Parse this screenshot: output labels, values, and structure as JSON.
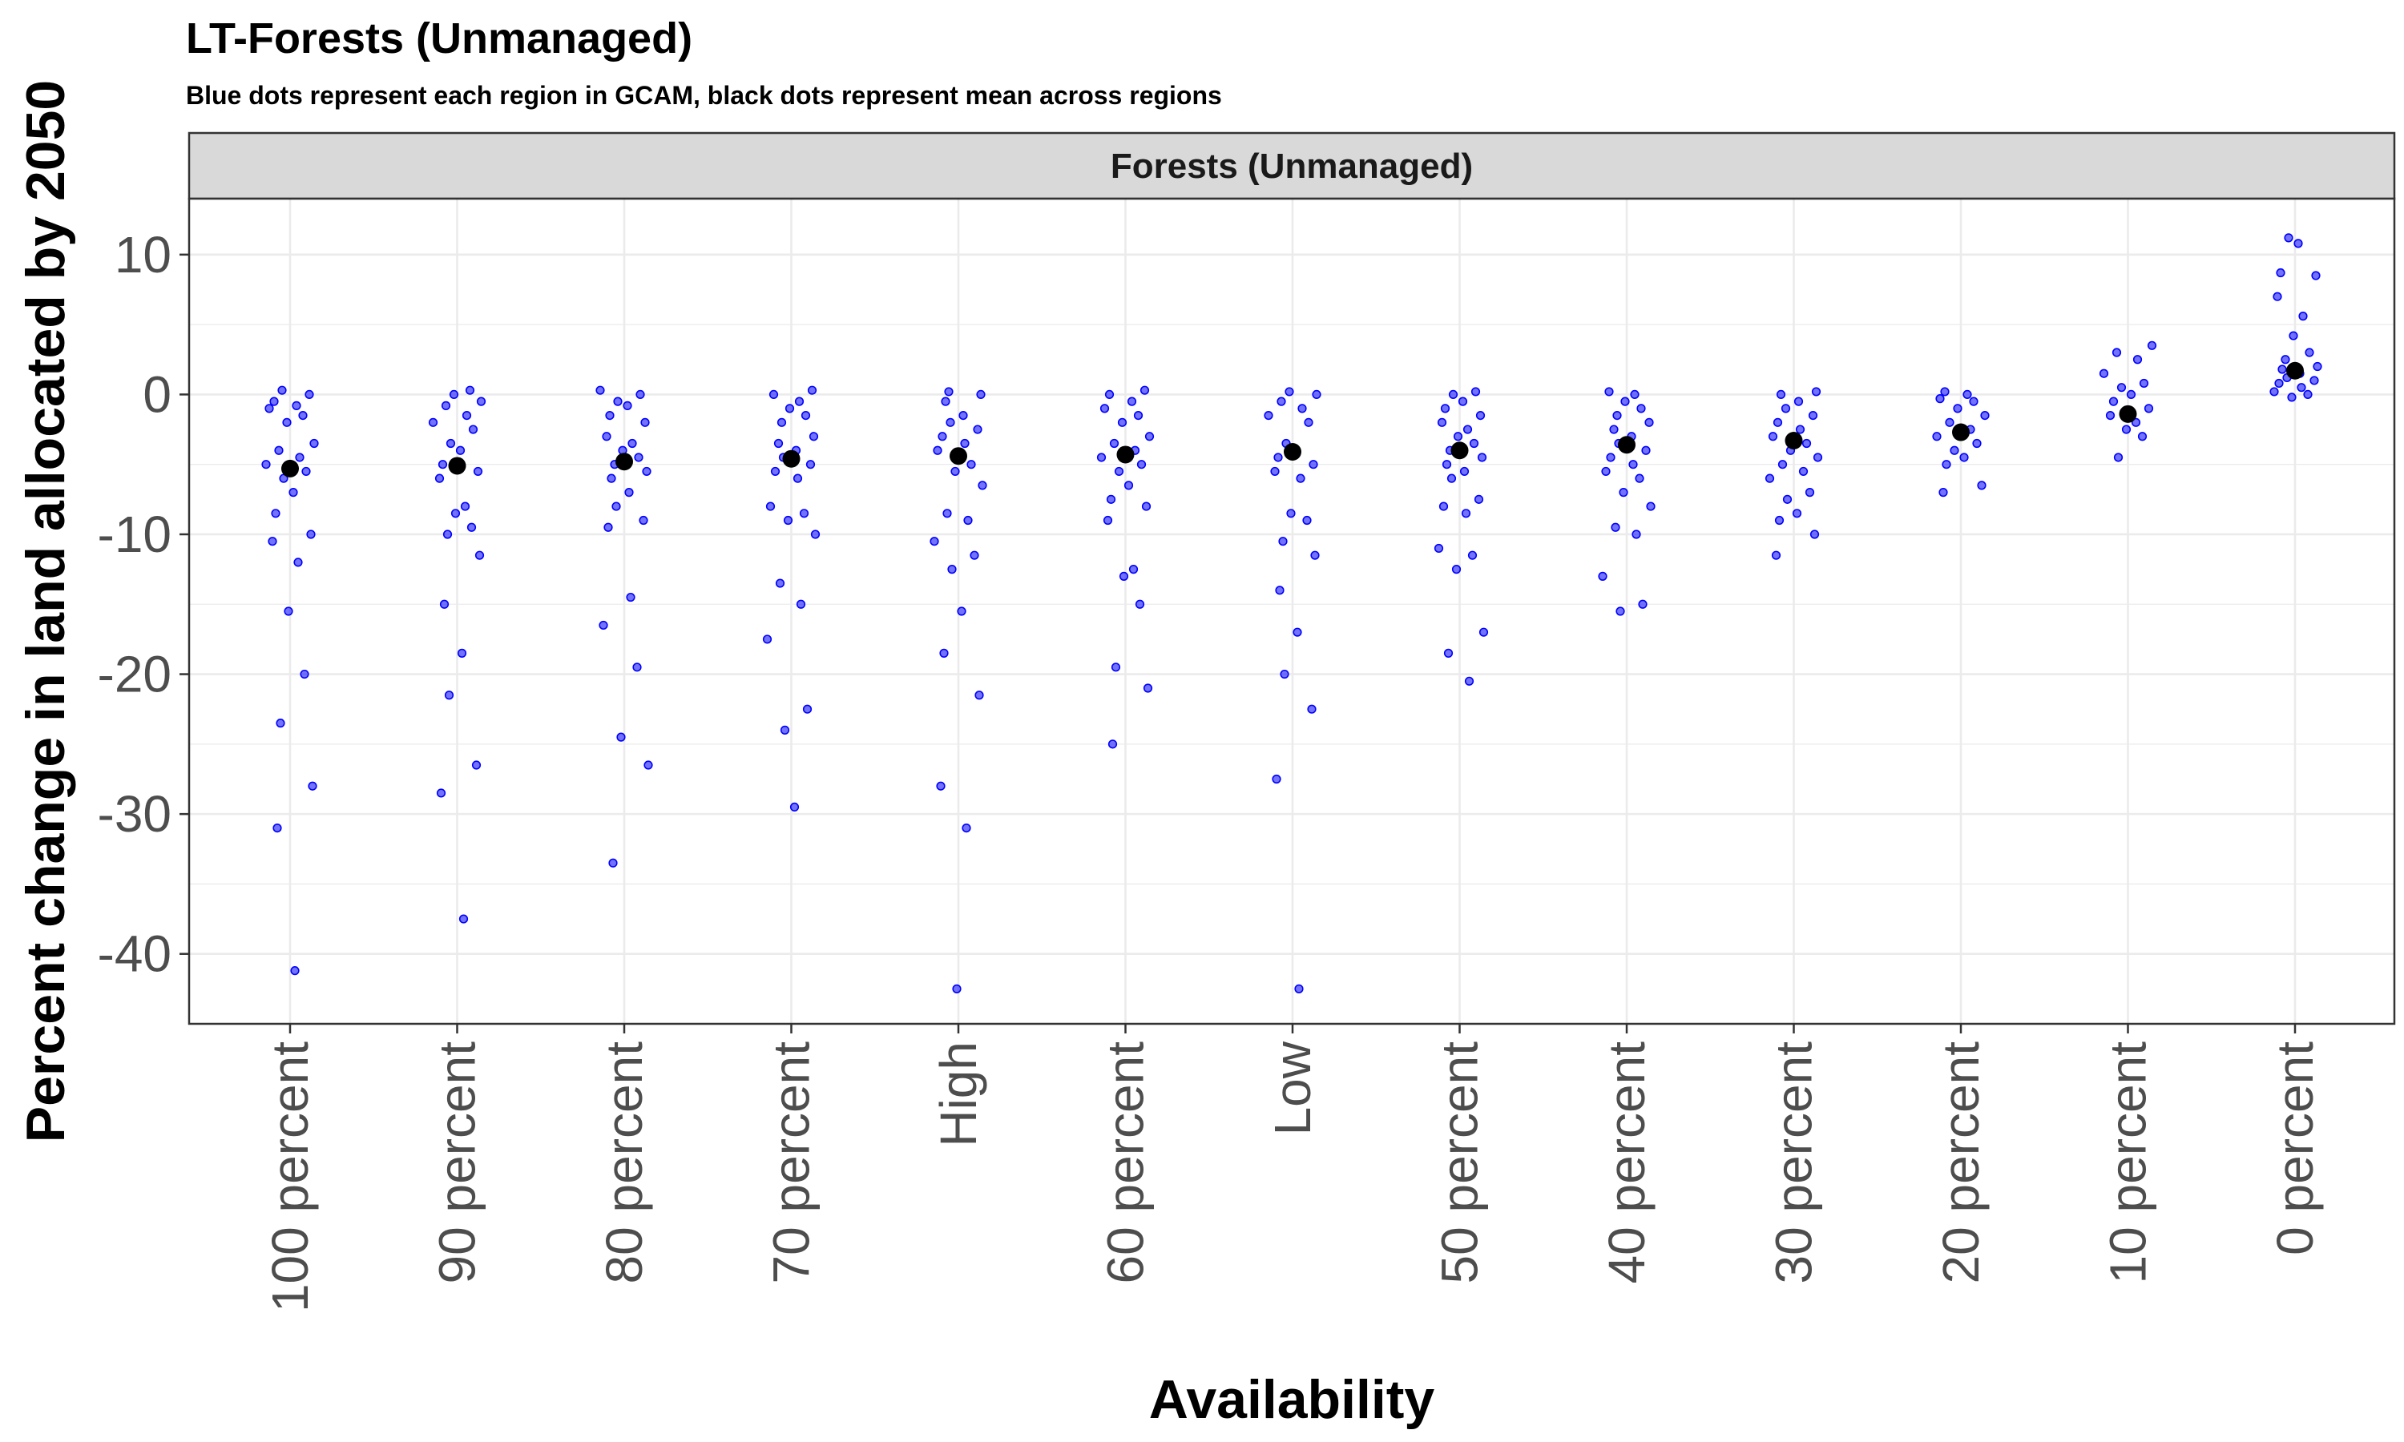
{
  "chart_data": {
    "type": "scatter",
    "title": "LT-Forests (Unmanaged)",
    "subtitle": "Blue dots represent each region in GCAM, black dots represent mean across regions",
    "facet_label": "Forests (Unmanaged)",
    "xlabel": "Availability",
    "ylabel": "Percent change in land allocated by 2050",
    "ylim": [
      -45,
      14
    ],
    "yticks": [
      10,
      0,
      -10,
      -20,
      -30,
      -40
    ],
    "grid": true,
    "colors": {
      "region_points": "#0000ff",
      "mean_points": "#000000",
      "strip_fill": "#d9d9d9"
    },
    "categories": [
      "100 percent",
      "90 percent",
      "80 percent",
      "70 percent",
      "High",
      "60 percent",
      "Low",
      "50 percent",
      "40 percent",
      "30 percent",
      "20 percent",
      "10 percent",
      "0 percent"
    ],
    "series": [
      {
        "name": "Region",
        "values": [
          [
            0.3,
            0,
            -0.5,
            -0.8,
            -1.0,
            -1.5,
            -2.0,
            -3.5,
            -4.0,
            -4.5,
            -5.0,
            -5.5,
            -6.0,
            -7.0,
            -8.5,
            -10.0,
            -10.5,
            -12.0,
            -15.5,
            -20.0,
            -23.5,
            -28.0,
            -31.0,
            -41.2
          ],
          [
            0.3,
            0,
            -0.5,
            -0.8,
            -1.5,
            -2.0,
            -2.5,
            -3.5,
            -4.0,
            -5.0,
            -5.5,
            -6.0,
            -8.0,
            -8.5,
            -9.5,
            -10.0,
            -11.5,
            -15.0,
            -18.5,
            -21.5,
            -26.5,
            -28.5,
            -37.5
          ],
          [
            0.3,
            0,
            -0.5,
            -0.8,
            -1.5,
            -2.0,
            -3.0,
            -3.5,
            -4.0,
            -4.5,
            -5.0,
            -5.5,
            -6.0,
            -7.0,
            -8.0,
            -9.0,
            -9.5,
            -14.5,
            -16.5,
            -19.5,
            -24.5,
            -26.5,
            -33.5
          ],
          [
            0.3,
            0,
            -0.5,
            -1.0,
            -1.5,
            -2.0,
            -3.0,
            -3.5,
            -4.0,
            -4.5,
            -5.0,
            -5.5,
            -6.0,
            -8.0,
            -8.5,
            -9.0,
            -10.0,
            -13.5,
            -15.0,
            -17.5,
            -22.5,
            -24.0,
            -29.5
          ],
          [
            0.2,
            0,
            -0.5,
            -1.5,
            -2.0,
            -2.5,
            -3.0,
            -3.5,
            -4.0,
            -5.0,
            -5.5,
            -6.5,
            -8.5,
            -9.0,
            -10.5,
            -11.5,
            -12.5,
            -15.5,
            -18.5,
            -21.5,
            -28.0,
            -31.0,
            -42.5
          ],
          [
            0.3,
            0,
            -0.5,
            -1.0,
            -1.5,
            -2.0,
            -3.0,
            -3.5,
            -4.0,
            -4.5,
            -5.0,
            -5.5,
            -6.5,
            -7.5,
            -8.0,
            -9.0,
            -12.5,
            -13.0,
            -15.0,
            -19.5,
            -21.0,
            -25.0
          ],
          [
            0.2,
            0,
            -0.5,
            -1.0,
            -1.5,
            -2.0,
            -3.5,
            -4.0,
            -4.5,
            -5.0,
            -5.5,
            -6.0,
            -8.5,
            -9.0,
            -10.5,
            -11.5,
            -14.0,
            -17.0,
            -20.0,
            -22.5,
            -27.5,
            -42.5
          ],
          [
            0.2,
            0,
            -0.5,
            -1.0,
            -1.5,
            -2.0,
            -2.5,
            -3.0,
            -3.5,
            -4.0,
            -4.5,
            -5.0,
            -5.5,
            -6.0,
            -7.5,
            -8.0,
            -8.5,
            -11.0,
            -11.5,
            -12.5,
            -17.0,
            -18.5,
            -20.5
          ],
          [
            0.2,
            0,
            -0.5,
            -1.0,
            -1.5,
            -2.0,
            -2.5,
            -3.0,
            -3.5,
            -4.0,
            -4.5,
            -5.0,
            -5.5,
            -6.0,
            -7.0,
            -8.0,
            -9.5,
            -10.0,
            -13.0,
            -15.0,
            -15.5
          ],
          [
            0.2,
            0,
            -0.5,
            -1.0,
            -1.5,
            -2.0,
            -2.5,
            -3.0,
            -3.5,
            -4.0,
            -4.5,
            -5.0,
            -5.5,
            -6.0,
            -7.0,
            -7.5,
            -8.5,
            -9.0,
            -10.0,
            -11.5
          ],
          [
            0.2,
            0,
            -0.3,
            -0.5,
            -1.0,
            -1.5,
            -2.0,
            -2.5,
            -3.0,
            -3.5,
            -4.0,
            -4.5,
            -5.0,
            -6.5,
            -7.0
          ],
          [
            3.5,
            3.0,
            2.5,
            1.5,
            0.8,
            0.5,
            0,
            -0.5,
            -1.0,
            -1.5,
            -2.0,
            -2.5,
            -3.0,
            -4.5
          ],
          [
            11.2,
            10.8,
            8.7,
            8.5,
            7.0,
            5.6,
            4.2,
            3.0,
            2.5,
            2.0,
            1.8,
            1.5,
            1.2,
            1.0,
            0.8,
            0.5,
            0.2,
            0,
            -0.2
          ]
        ]
      },
      {
        "name": "Mean",
        "values": [
          -5.3,
          -5.1,
          -4.8,
          -4.6,
          -4.4,
          -4.3,
          -4.1,
          -4.0,
          -3.6,
          -3.3,
          -2.7,
          -1.4,
          1.7
        ]
      }
    ]
  }
}
